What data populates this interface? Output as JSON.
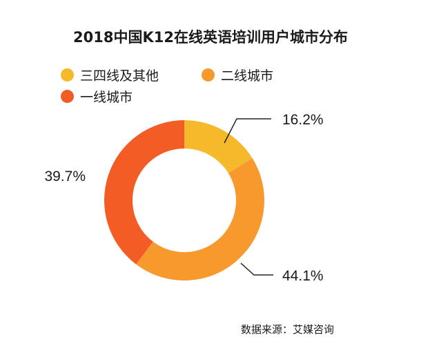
{
  "chart_data": {
    "type": "pie",
    "title": "2018中国K12在线英语培训用户城市分布",
    "categories": [
      "三四线及其他",
      "二线城市",
      "一线城市"
    ],
    "values": [
      16.2,
      44.1,
      39.7
    ],
    "labels": [
      "16.2%",
      "44.1%",
      "39.7%"
    ],
    "colors": [
      "#F6B92B",
      "#F7992D",
      "#F35C24"
    ],
    "legend_position": "top-left",
    "donut": true
  },
  "source": "数据来源：艾媒咨询"
}
